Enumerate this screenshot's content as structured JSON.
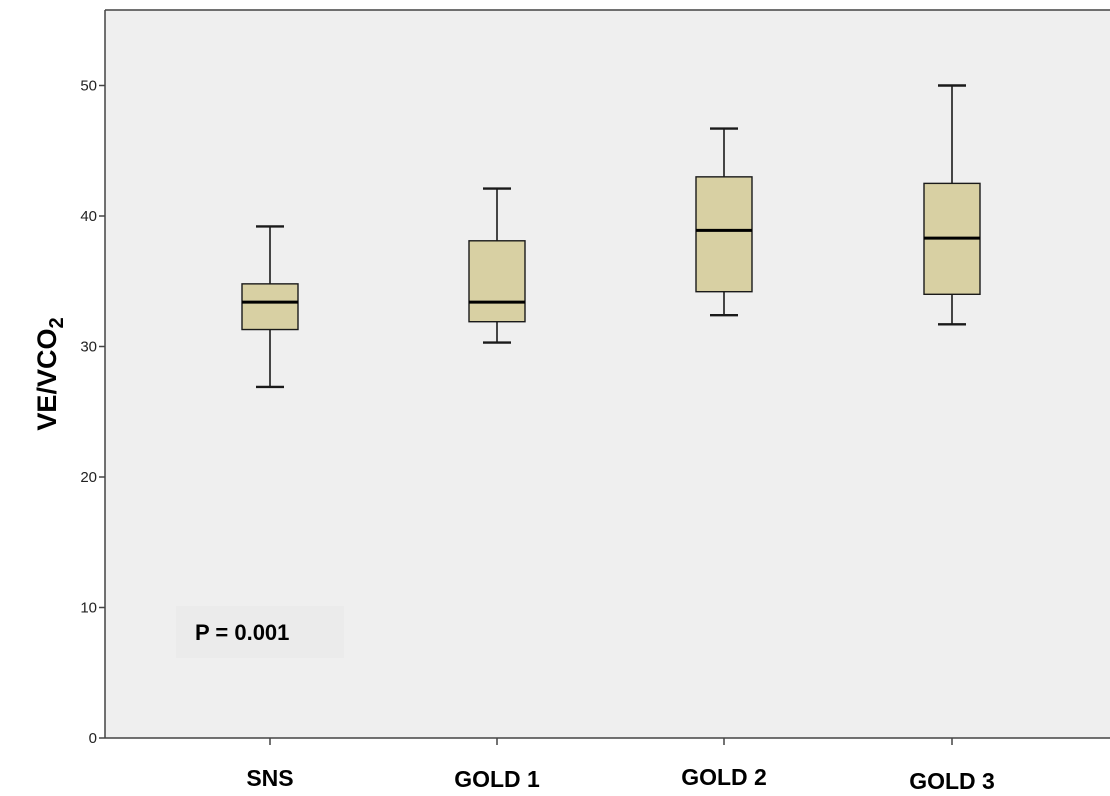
{
  "chart_data": {
    "type": "boxplot",
    "ylabel": "VE/VCO",
    "ylabel_subscript": "2",
    "yticks": [
      "0",
      "10",
      "20",
      "30",
      "40",
      "50"
    ],
    "ylim": [
      0,
      56
    ],
    "categories": [
      "SNS",
      "GOLD 1",
      "GOLD 2",
      "GOLD 3"
    ],
    "boxes": [
      {
        "category": "SNS",
        "min": 26.9,
        "q1": 31.3,
        "median": 33.4,
        "q3": 34.8,
        "max": 39.2
      },
      {
        "category": "GOLD 1",
        "min": 30.3,
        "q1": 31.9,
        "median": 33.4,
        "q3": 38.1,
        "max": 42.1
      },
      {
        "category": "GOLD 2",
        "min": 32.4,
        "q1": 34.2,
        "median": 38.9,
        "q3": 43.0,
        "max": 46.7
      },
      {
        "category": "GOLD 3",
        "min": 31.7,
        "q1": 34.0,
        "median": 38.3,
        "q3": 42.5,
        "max": 50.0
      }
    ],
    "annotation": "P = 0.001",
    "grid": false,
    "colors": {
      "plot_background": "#efefef",
      "box_fill": "#d8d0a3",
      "stroke": "#1a1a1a"
    }
  }
}
